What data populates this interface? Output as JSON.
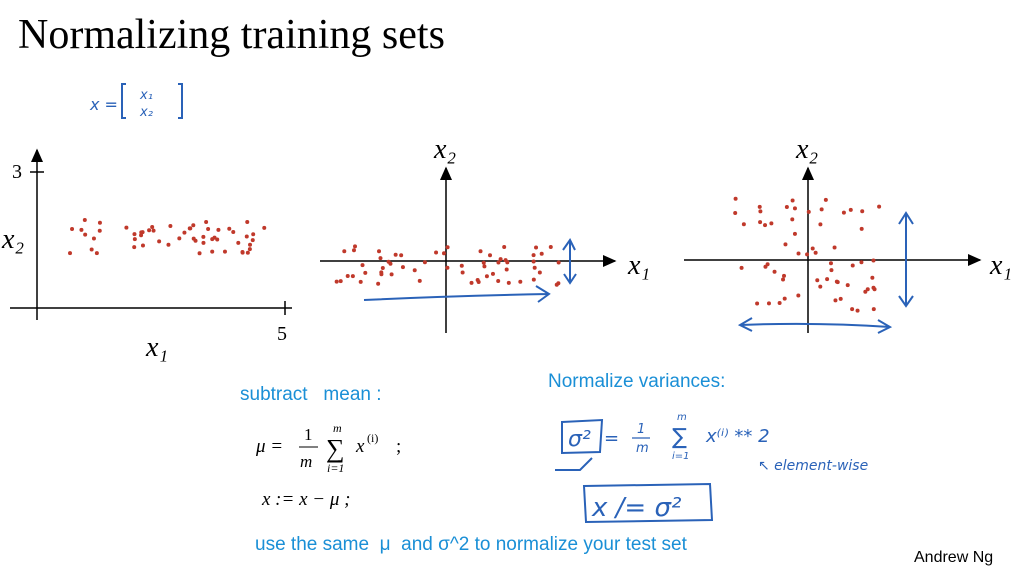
{
  "title": "Normalizing training sets",
  "vector_note": {
    "lhs": "x =",
    "top": "x₁",
    "bottom": "x₂"
  },
  "plots": [
    {
      "y_tick": "3",
      "y_label": "x₂",
      "x_label": "x₁",
      "x_tick": "5"
    },
    {
      "y_label": "x₂",
      "x_label": "x₁"
    },
    {
      "y_label": "x₂",
      "x_label": "x₁"
    }
  ],
  "subtract_mean": {
    "heading": "subtract   mean :",
    "lhs": "μ =",
    "num": "1",
    "den": "m",
    "sum_top": "m",
    "sum": "∑",
    "sum_bottom": "i=1",
    "term": "x",
    "term_sup": "(i)",
    "end": ";",
    "update": "x := x − μ ;"
  },
  "normalize_variances": {
    "heading": "Normalize variances:",
    "sigma": "σ²",
    "eq": "=",
    "num": "1",
    "den": "m",
    "sum_top": "m",
    "sum": "∑",
    "sum_bottom": "i=1",
    "term": "x⁽ⁱ⁾ ** 2",
    "note": "↖ element-wise",
    "update": "x /= σ²"
  },
  "footer": {
    "note": "use the same  μ  and σ^2 to normalize your test set",
    "author": "Andrew Ng"
  }
}
